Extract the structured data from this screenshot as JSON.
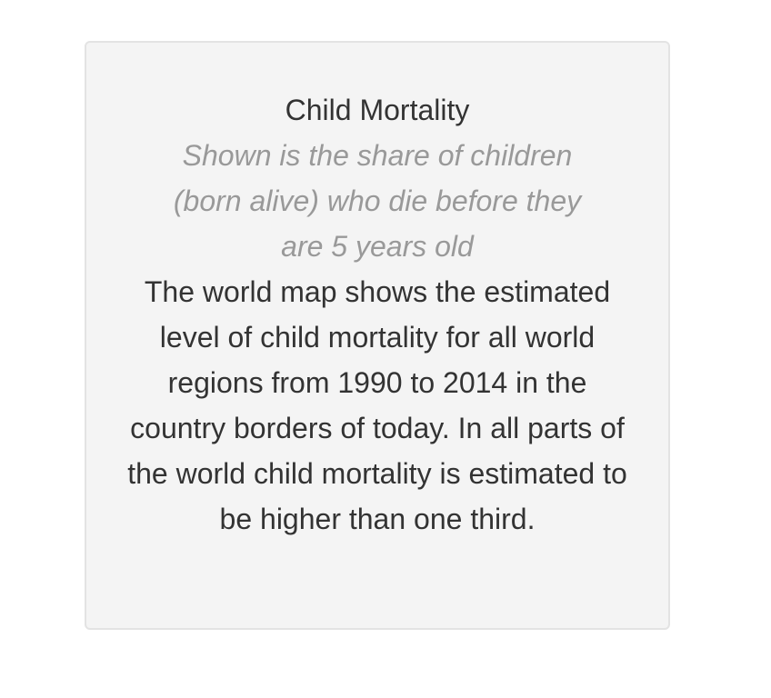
{
  "card": {
    "title": "Child Mortality",
    "subtitle": "Shown is the share of children (born alive) who die before they are 5 years old",
    "description": "The world map shows the estimated level of child mortality for all world regions from 1990 to 2014 in the country borders of today. In all parts of the world child mortality is estimated to be higher than one third."
  },
  "colors": {
    "card_background": "#f4f4f4",
    "card_border": "#e3e3e3",
    "title_text": "#333333",
    "subtitle_text": "#999999"
  }
}
